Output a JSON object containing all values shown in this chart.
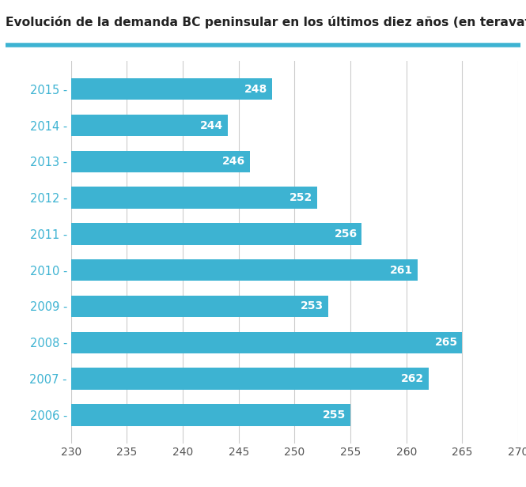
{
  "title": "Evolución de la demanda BC peninsular en los últimos diez años (en teravatios hora)",
  "years": [
    "2015 -",
    "2014 -",
    "2013 -",
    "2012 -",
    "2011 -",
    "2010 -",
    "2009 -",
    "2008 -",
    "2007 -",
    "2006 -"
  ],
  "values": [
    248,
    244,
    246,
    252,
    256,
    261,
    253,
    265,
    262,
    255
  ],
  "bar_color": "#3db3d2",
  "label_color": "#ffffff",
  "title_color": "#222222",
  "background_color": "#ffffff",
  "axis_label_color": "#3db3d2",
  "grid_color": "#cccccc",
  "xtick_color": "#555555",
  "xlim": [
    230,
    270
  ],
  "xticks": [
    230,
    235,
    240,
    245,
    250,
    255,
    260,
    265,
    270
  ],
  "title_line_color": "#3db3d2",
  "title_fontsize": 11.2,
  "tick_fontsize": 10,
  "label_fontsize": 10,
  "year_fontsize": 10.5,
  "bar_height": 0.6
}
